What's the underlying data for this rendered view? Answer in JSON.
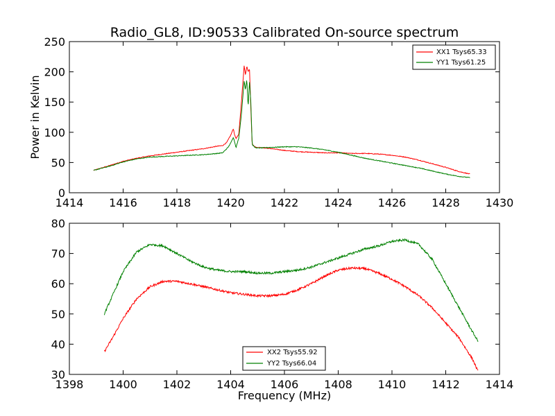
{
  "chart_data": [
    {
      "type": "line",
      "title": "Radio_GL8, ID:90533 Calibrated On-source spectrum",
      "xlabel": "",
      "ylabel": "Power in Kelvin",
      "xlim": [
        1414,
        1430
      ],
      "ylim": [
        0,
        250
      ],
      "xticks": [
        1414,
        1416,
        1418,
        1420,
        1422,
        1424,
        1426,
        1428,
        1430
      ],
      "yticks": [
        0,
        50,
        100,
        150,
        200,
        250
      ],
      "legend_position": "top-right",
      "series": [
        {
          "name": "XX1 Tsys65.33",
          "color": "#ff0000",
          "x": [
            1414.9,
            1415.5,
            1416.0,
            1416.5,
            1417.0,
            1417.5,
            1418.0,
            1418.5,
            1419.0,
            1419.5,
            1419.7,
            1419.85,
            1420.0,
            1420.1,
            1420.15,
            1420.2,
            1420.3,
            1420.4,
            1420.5,
            1420.55,
            1420.6,
            1420.65,
            1420.7,
            1420.75,
            1420.8,
            1420.9,
            1421.0,
            1421.5,
            1422.0,
            1422.5,
            1423.0,
            1423.5,
            1424.0,
            1424.5,
            1425.0,
            1425.5,
            1426.0,
            1426.5,
            1427.0,
            1427.5,
            1428.0,
            1428.5,
            1428.9
          ],
          "y": [
            37,
            45,
            52,
            57,
            61,
            64,
            67,
            70,
            73,
            77,
            78,
            83,
            95,
            106,
            95,
            90,
            96,
            150,
            210,
            195,
            210,
            200,
            205,
            140,
            80,
            76,
            75,
            73,
            70,
            68,
            67,
            66,
            66,
            65,
            65,
            64,
            62,
            59,
            54,
            48,
            42,
            35,
            31
          ]
        },
        {
          "name": "YY1 Tsys61.25",
          "color": "#008000",
          "x": [
            1414.9,
            1415.5,
            1416.0,
            1416.5,
            1417.0,
            1417.5,
            1418.0,
            1418.5,
            1419.0,
            1419.5,
            1419.7,
            1419.9,
            1420.0,
            1420.1,
            1420.2,
            1420.3,
            1420.4,
            1420.5,
            1420.55,
            1420.6,
            1420.65,
            1420.7,
            1420.75,
            1420.8,
            1420.9,
            1421.0,
            1421.5,
            1422.0,
            1422.5,
            1423.0,
            1423.5,
            1424.0,
            1424.5,
            1425.0,
            1425.5,
            1426.0,
            1426.5,
            1427.0,
            1427.5,
            1428.0,
            1428.5,
            1428.9
          ],
          "y": [
            37,
            44,
            51,
            56,
            59,
            60,
            61,
            62,
            63,
            65,
            66,
            75,
            82,
            92,
            75,
            90,
            130,
            185,
            170,
            188,
            142,
            185,
            150,
            80,
            75,
            74,
            75,
            76,
            76,
            74,
            71,
            67,
            62,
            57,
            53,
            49,
            45,
            41,
            36,
            31,
            27,
            25
          ]
        }
      ]
    },
    {
      "type": "line",
      "title": "",
      "xlabel": "Frequency (MHz)",
      "ylabel": "",
      "xlim": [
        1398,
        1414
      ],
      "ylim": [
        30,
        80
      ],
      "xticks": [
        1398,
        1400,
        1402,
        1404,
        1406,
        1408,
        1410,
        1412,
        1414
      ],
      "yticks": [
        30,
        40,
        50,
        60,
        70,
        80
      ],
      "legend_position": "bottom-center",
      "series": [
        {
          "name": "XX2 Tsys55.92",
          "color": "#ff0000",
          "x": [
            1399.3,
            1399.6,
            1400.0,
            1400.5,
            1401.0,
            1401.5,
            1402.0,
            1402.5,
            1403.0,
            1403.5,
            1404.0,
            1404.5,
            1405.0,
            1405.5,
            1406.0,
            1406.5,
            1407.0,
            1407.5,
            1408.0,
            1408.5,
            1409.0,
            1409.5,
            1410.0,
            1410.5,
            1411.0,
            1411.5,
            1412.0,
            1412.5,
            1413.0,
            1413.2
          ],
          "y": [
            37.5,
            42,
            48.5,
            55,
            59,
            60.8,
            60.8,
            60,
            59,
            58,
            57,
            56.5,
            56,
            56,
            56.5,
            58,
            60,
            62.5,
            64.5,
            65.2,
            65,
            63.5,
            61.5,
            59,
            56,
            52,
            47,
            42,
            35,
            31
          ]
        },
        {
          "name": "YY2 Tsys66.04",
          "color": "#008000",
          "x": [
            1399.3,
            1399.6,
            1400.0,
            1400.5,
            1401.0,
            1401.5,
            1402.0,
            1402.5,
            1403.0,
            1403.5,
            1404.0,
            1404.5,
            1405.0,
            1405.5,
            1406.0,
            1406.5,
            1407.0,
            1407.5,
            1408.0,
            1408.5,
            1409.0,
            1409.5,
            1410.0,
            1410.5,
            1411.0,
            1411.5,
            1412.0,
            1412.5,
            1413.0,
            1413.2
          ],
          "y": [
            50,
            56,
            64,
            70.5,
            73,
            72.5,
            70,
            67.5,
            65.5,
            64.5,
            64,
            64,
            63.5,
            63.5,
            64,
            64.5,
            65.5,
            67,
            68.5,
            70,
            71.5,
            72.5,
            74,
            74.5,
            73,
            68,
            60,
            52,
            44,
            41
          ]
        }
      ]
    }
  ]
}
